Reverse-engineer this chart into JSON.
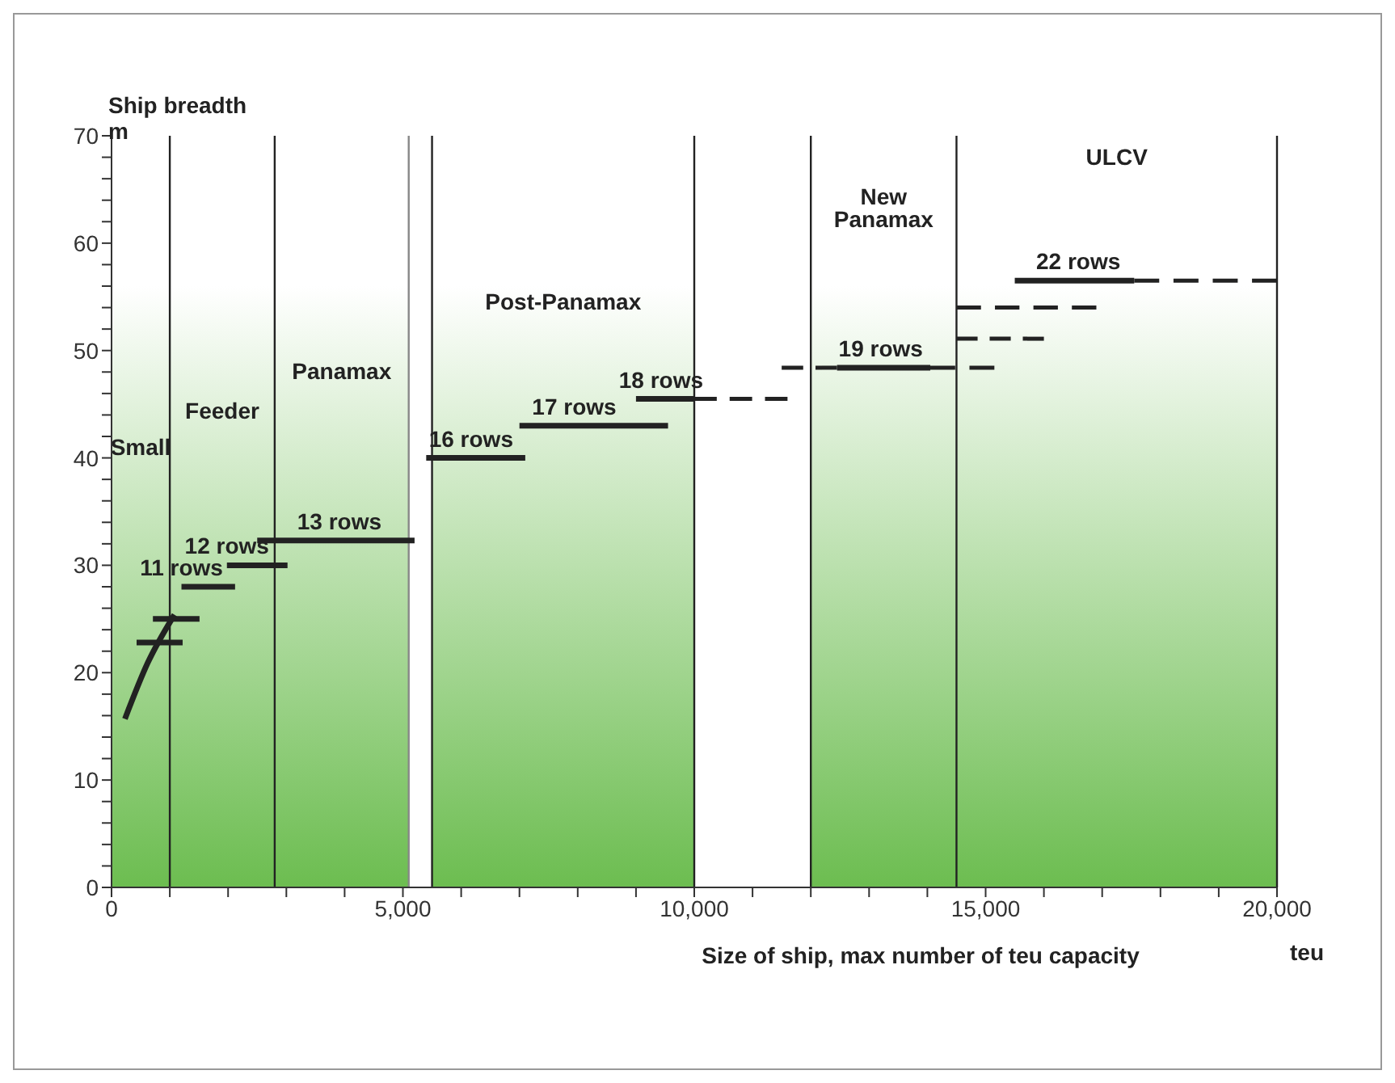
{
  "chart_data": {
    "type": "line",
    "xlabel": "Size of ship, max number of teu capacity",
    "ylabel": "Ship breadth\nm",
    "xlim": [
      0,
      20000
    ],
    "ylim": [
      0,
      70
    ],
    "xticks": [
      0,
      {
        "value": 1000,
        "label": null
      },
      {
        "value": 2000,
        "label": null
      },
      {
        "value": 3000,
        "label": null
      },
      {
        "value": 4000,
        "label": null
      },
      {
        "value": 5000,
        "label": "5,000"
      },
      {
        "value": 6000,
        "label": null
      },
      {
        "value": 7000,
        "label": null
      },
      {
        "value": 8000,
        "label": null
      },
      {
        "value": 9000,
        "label": null
      },
      {
        "value": 10000,
        "label": "10,000"
      },
      {
        "value": 11000,
        "label": null
      },
      {
        "value": 12000,
        "label": null
      },
      {
        "value": 13000,
        "label": null
      },
      {
        "value": 14000,
        "label": null
      },
      {
        "value": 15000,
        "label": "15,000"
      },
      {
        "value": 16000,
        "label": null
      },
      {
        "value": 17000,
        "label": null
      },
      {
        "value": 18000,
        "label": null
      },
      {
        "value": 19000,
        "label": null
      },
      {
        "value": 20000,
        "label": "20,000"
      }
    ],
    "yticks": [
      0,
      {
        "value": 2,
        "label": null
      },
      {
        "value": 4,
        "label": null
      },
      {
        "value": 6,
        "label": null
      },
      {
        "value": 8,
        "label": null
      },
      10,
      {
        "value": 12,
        "label": null
      },
      {
        "value": 14,
        "label": null
      },
      {
        "value": 16,
        "label": null
      },
      {
        "value": 18,
        "label": null
      },
      20,
      {
        "value": 22,
        "label": null
      },
      {
        "value": 24,
        "label": null
      },
      {
        "value": 26,
        "label": null
      },
      {
        "value": 28,
        "label": null
      },
      30,
      {
        "value": 32,
        "label": null
      },
      {
        "value": 34,
        "label": null
      },
      {
        "value": 36,
        "label": null
      },
      {
        "value": 38,
        "label": null
      },
      40,
      {
        "value": 42,
        "label": null
      },
      {
        "value": 44,
        "label": null
      },
      {
        "value": 46,
        "label": null
      },
      {
        "value": 48,
        "label": null
      },
      50,
      {
        "value": 52,
        "label": null
      },
      {
        "value": 54,
        "label": null
      },
      {
        "value": 56,
        "label": null
      },
      {
        "value": 58,
        "label": null
      },
      60,
      {
        "value": 62,
        "label": null
      },
      {
        "value": 64,
        "label": null
      },
      {
        "value": 66,
        "label": null
      },
      {
        "value": 68,
        "label": null
      },
      70
    ],
    "grid": false,
    "marker": "none",
    "series": [
      {
        "color": "#222222",
        "line_style": "solid",
        "x": [
          230,
          620,
          1080
        ],
        "values": [
          15.7,
          20.9,
          25.4
        ]
      },
      {
        "color": "#222222",
        "line_style": "solid",
        "x": [
          430,
          1220
        ],
        "values": [
          22.8,
          22.8
        ]
      },
      {
        "color": "#222222",
        "line_style": "solid",
        "x": [
          710,
          1510
        ],
        "values": [
          25,
          25
        ]
      },
      {
        "color": "#222222",
        "line_style": "solid",
        "x": [
          1200,
          2120
        ],
        "values": [
          28,
          28
        ]
      },
      {
        "color": "#222222",
        "line_style": "solid",
        "x": [
          1980,
          3020
        ],
        "values": [
          30,
          30
        ]
      },
      {
        "color": "#222222",
        "line_style": "solid",
        "x": [
          2500,
          5200
        ],
        "values": [
          32.3,
          32.3
        ]
      },
      {
        "color": "#222222",
        "line_style": "solid",
        "x": [
          5400,
          7100
        ],
        "values": [
          40,
          40
        ]
      },
      {
        "color": "#222222",
        "line_style": "solid",
        "x": [
          7000,
          9550
        ],
        "values": [
          43,
          43
        ]
      },
      {
        "color": "#222222",
        "line_style": "solid",
        "x": [
          9000,
          10000
        ],
        "values": [
          45.5,
          45.5
        ]
      },
      {
        "color": "#222222",
        "line_style": "dashed",
        "x": [
          10000,
          11600
        ],
        "values": [
          45.5,
          45.5
        ]
      },
      {
        "color": "#222222",
        "line_style": "dashed",
        "x": [
          11500,
          12450
        ],
        "values": [
          48.4,
          48.4
        ]
      },
      {
        "color": "#222222",
        "line_style": "solid",
        "x": [
          12450,
          14050
        ],
        "values": [
          48.4,
          48.4
        ]
      },
      {
        "color": "#222222",
        "line_style": "dashed",
        "x": [
          14050,
          15150
        ],
        "values": [
          48.4,
          48.4
        ]
      },
      {
        "color": "#222222",
        "line_style": "dashed",
        "x": [
          14500,
          16900
        ],
        "values": [
          54,
          54
        ]
      },
      {
        "color": "#222222",
        "line_style": "dashed",
        "x": [
          14500,
          16000
        ],
        "values": [
          51.1,
          51.1
        ]
      },
      {
        "color": "#222222",
        "line_style": "solid",
        "x": [
          15500,
          17550
        ],
        "values": [
          56.5,
          56.5
        ]
      },
      {
        "color": "#222222",
        "line_style": "dashed",
        "x": [
          17550,
          20000
        ],
        "values": [
          56.5,
          56.5
        ]
      }
    ],
    "bands": [
      {
        "axis": "x",
        "from": 0,
        "to": 1000,
        "label": "Small",
        "color": "#6cbd50"
      },
      {
        "axis": "x",
        "from": 1000,
        "to": 2800,
        "label": "Feeder",
        "color": "#6cbd50"
      },
      {
        "axis": "x",
        "from": 2800,
        "to": 5100,
        "label": "Panamax",
        "color": "#6cbd50"
      },
      {
        "axis": "x",
        "from": 5500,
        "to": 10000,
        "label": "Post-Panamax",
        "color": "#6cbd50"
      },
      {
        "axis": "x",
        "from": 12000,
        "to": 14500,
        "label": "New\nPanamax",
        "color": "#6cbd50"
      },
      {
        "axis": "x",
        "from": 14500,
        "to": 20000,
        "label": "ULCV",
        "color": "#6cbd50"
      }
    ],
    "ref_lines": [
      {
        "axis": "x",
        "value": 1000,
        "label": null,
        "color": "#222222"
      },
      {
        "axis": "x",
        "value": 2800,
        "label": null,
        "color": "#222222"
      },
      {
        "axis": "x",
        "value": 5100,
        "label": null,
        "color": "#888888"
      },
      {
        "axis": "x",
        "value": 5500,
        "label": null,
        "color": "#222222"
      },
      {
        "axis": "x",
        "value": 10000,
        "label": null,
        "color": "#222222"
      },
      {
        "axis": "x",
        "value": 12000,
        "label": null,
        "color": "#222222"
      },
      {
        "axis": "x",
        "value": 14500,
        "label": null,
        "color": "#222222"
      },
      {
        "axis": "x",
        "value": 20000,
        "label": null,
        "color": "#222222"
      }
    ],
    "annotations": [
      {
        "text": "11 rows",
        "x": 1200,
        "y": 28
      },
      {
        "text": "12 rows",
        "x": 1980,
        "y": 30
      },
      {
        "text": "13 rows",
        "x": 3910,
        "y": 32.3
      },
      {
        "text": "16 rows",
        "x": 6170,
        "y": 40
      },
      {
        "text": "17 rows",
        "x": 7940,
        "y": 43
      },
      {
        "text": "18 rows",
        "x": 9430,
        "y": 45.5
      },
      {
        "text": "19 rows",
        "x": 13200,
        "y": 48.4
      },
      {
        "text": "22 rows",
        "x": 16590,
        "y": 56.5
      },
      "teu"
    ]
  }
}
